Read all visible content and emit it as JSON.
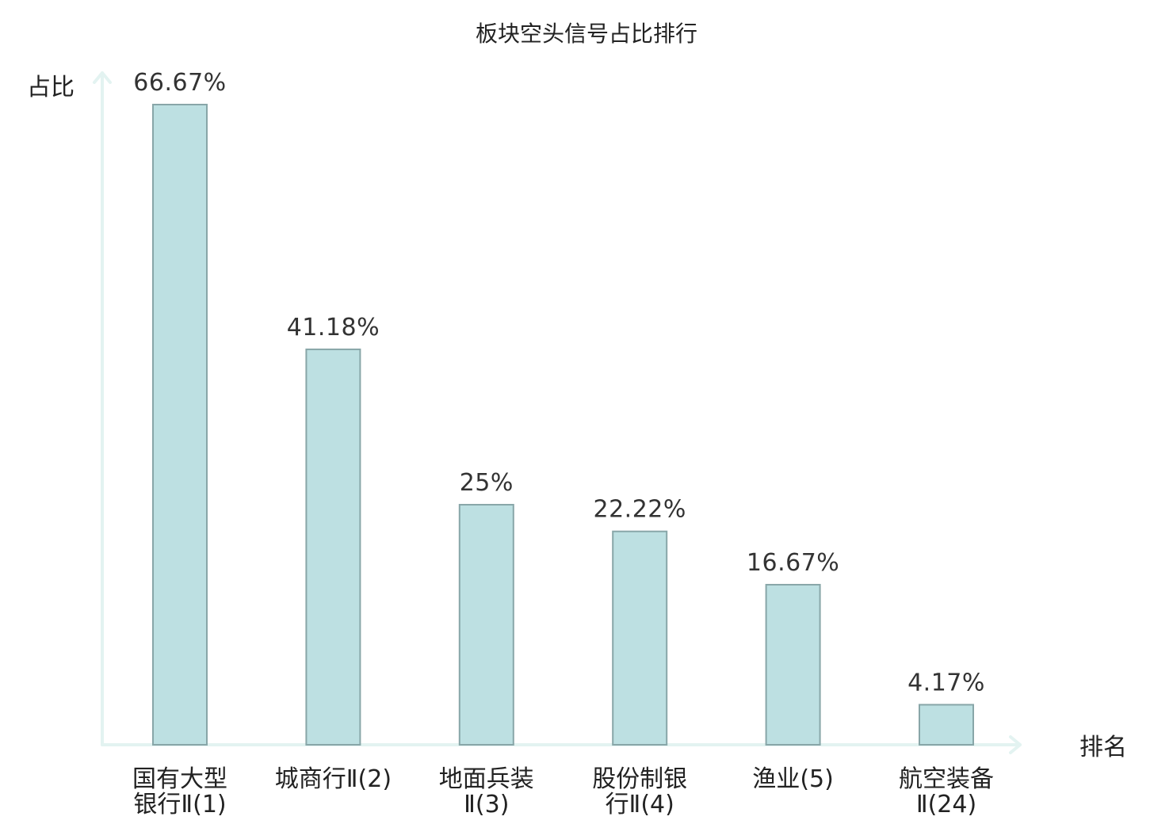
{
  "chart_data": {
    "type": "bar",
    "title": "板块空头信号占比排行",
    "xlabel": "排名",
    "ylabel": "占比",
    "categories": [
      [
        "国有大型",
        "银行Ⅱ(1)"
      ],
      [
        "城商行Ⅱ(2)"
      ],
      [
        "地面兵装",
        "Ⅱ(3)"
      ],
      [
        "股份制银",
        "行Ⅱ(4)"
      ],
      [
        "渔业(5)"
      ],
      [
        "航空装备",
        "Ⅱ(24)"
      ]
    ],
    "values": [
      66.67,
      41.18,
      25,
      22.22,
      16.67,
      4.17
    ],
    "value_labels": [
      "66.67%",
      "41.18%",
      "25%",
      "22.22%",
      "16.67%",
      "4.17%"
    ],
    "highlight_index": 5,
    "colors": {
      "bar_fill": "#bde0e2",
      "bar_stroke": "#88a6a8",
      "axis": "#e3f3f1",
      "highlight_text": "#e0211c",
      "text": "#222222"
    },
    "ylim": [
      0,
      70
    ],
    "grid": false,
    "legend": "none"
  }
}
